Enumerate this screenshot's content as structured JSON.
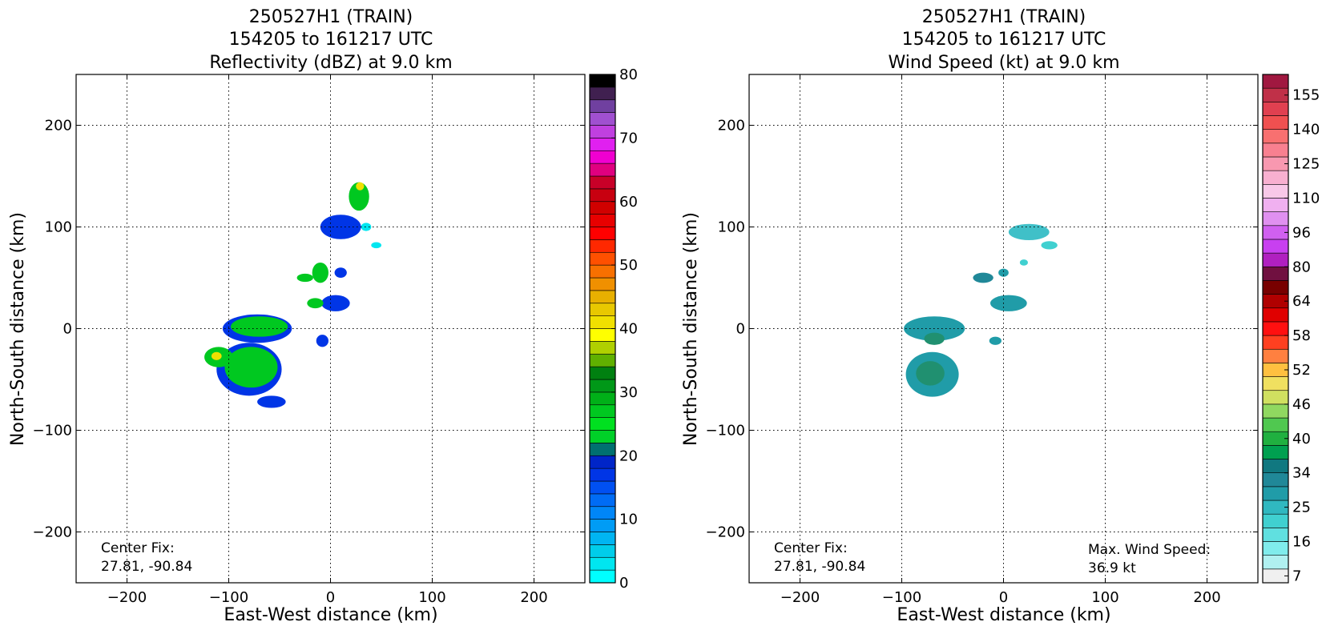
{
  "chart_data": [
    {
      "type": "heatmap",
      "title": [
        "250527H1 (TRAIN)",
        "154205 to 161217 UTC",
        "Reflectivity (dBZ) at 9.0 km"
      ],
      "xlabel": "East-West distance (km)",
      "ylabel": "North-South distance (km)",
      "xlim": [
        -250,
        250
      ],
      "ylim": [
        -250,
        250
      ],
      "xticks": [
        -200,
        -100,
        0,
        100,
        200
      ],
      "yticks": [
        -200,
        -100,
        0,
        100,
        200
      ],
      "grid": true,
      "annotations": [
        "Center Fix:",
        "27.81, -90.84"
      ],
      "colorbar": {
        "label_ticks": [
          "0",
          "10",
          "20",
          "30",
          "40",
          "50",
          "60",
          "70",
          "80"
        ],
        "colors": [
          "#00ffff",
          "#00e6f0",
          "#00cdea",
          "#00b5f2",
          "#009cf5",
          "#0086f7",
          "#006cf5",
          "#0050f2",
          "#0035e6",
          "#0025c8",
          "#007070",
          "#00d028",
          "#00e020",
          "#00c820",
          "#00b018",
          "#009818",
          "#008010",
          "#60b000",
          "#b0d000",
          "#ffff00",
          "#f0e000",
          "#e8c800",
          "#e8b000",
          "#f09000",
          "#f87000",
          "#ff5000",
          "#ff2800",
          "#ff0000",
          "#e80000",
          "#d00000",
          "#c80010",
          "#c80028",
          "#e00080",
          "#f000d0",
          "#e020f0",
          "#c040e0",
          "#a050d0",
          "#7040a0",
          "#402050",
          "#000000"
        ]
      },
      "patches": [
        {
          "x": -80,
          "y": -40,
          "rx": 32,
          "ry": 26,
          "color": "#0035e6"
        },
        {
          "x": -78,
          "y": -38,
          "rx": 26,
          "ry": 20,
          "color": "#00c820"
        },
        {
          "x": -72,
          "y": 0,
          "rx": 34,
          "ry": 14,
          "color": "#0035e6"
        },
        {
          "x": -70,
          "y": 2,
          "rx": 28,
          "ry": 10,
          "color": "#00c820"
        },
        {
          "x": -110,
          "y": -28,
          "rx": 14,
          "ry": 10,
          "color": "#00c820"
        },
        {
          "x": -112,
          "y": -27,
          "rx": 5,
          "ry": 4,
          "color": "#f0e000"
        },
        {
          "x": -58,
          "y": -72,
          "rx": 14,
          "ry": 6,
          "color": "#0035e6"
        },
        {
          "x": 10,
          "y": 100,
          "rx": 20,
          "ry": 12,
          "color": "#0035e6"
        },
        {
          "x": 28,
          "y": 130,
          "rx": 10,
          "ry": 14,
          "color": "#00c820"
        },
        {
          "x": 29,
          "y": 140,
          "rx": 4,
          "ry": 4,
          "color": "#f0e000"
        },
        {
          "x": 35,
          "y": 100,
          "rx": 5,
          "ry": 4,
          "color": "#00e6f0"
        },
        {
          "x": 45,
          "y": 82,
          "rx": 5,
          "ry": 3,
          "color": "#00e6f0"
        },
        {
          "x": -10,
          "y": 55,
          "rx": 8,
          "ry": 10,
          "color": "#00c820"
        },
        {
          "x": -25,
          "y": 50,
          "rx": 8,
          "ry": 4,
          "color": "#00c820"
        },
        {
          "x": 5,
          "y": 25,
          "rx": 14,
          "ry": 8,
          "color": "#0035e6"
        },
        {
          "x": -15,
          "y": 25,
          "rx": 8,
          "ry": 5,
          "color": "#00c820"
        },
        {
          "x": -8,
          "y": -12,
          "rx": 6,
          "ry": 6,
          "color": "#0035e6"
        },
        {
          "x": 10,
          "y": 55,
          "rx": 6,
          "ry": 5,
          "color": "#0035e6"
        }
      ]
    },
    {
      "type": "heatmap",
      "title": [
        "250527H1 (TRAIN)",
        "154205 to 161217 UTC",
        "Wind Speed (kt) at 9.0 km"
      ],
      "xlabel": "East-West distance (km)",
      "ylabel": "North-South distance (km)",
      "xlim": [
        -250,
        250
      ],
      "ylim": [
        -250,
        250
      ],
      "xticks": [
        -200,
        -100,
        0,
        100,
        200
      ],
      "yticks": [
        -200,
        -100,
        0,
        100,
        200
      ],
      "grid": true,
      "annotations": [
        "Center Fix:",
        "27.81, -90.84",
        "Max. Wind Speed:",
        "36.9 kt"
      ],
      "colorbar": {
        "label_ticks": [
          "7",
          "16",
          "25",
          "34",
          "40",
          "46",
          "52",
          "58",
          "64",
          "80",
          "96",
          "110",
          "125",
          "140",
          "155"
        ],
        "colors": [
          "#f0f0f0",
          "#b0f0f0",
          "#80ecec",
          "#60e0e0",
          "#40d0d0",
          "#30b8c0",
          "#209ca8",
          "#208898",
          "#107880",
          "#00a050",
          "#20b040",
          "#50c850",
          "#90d860",
          "#d0e060",
          "#f0e060",
          "#ffc040",
          "#ff8040",
          "#ff4020",
          "#ff1010",
          "#e00000",
          "#b00000",
          "#780000",
          "#701040",
          "#b020c0",
          "#c840f0",
          "#d060f0",
          "#e090f0",
          "#f0b0f0",
          "#f8c8e8",
          "#f8b0d0",
          "#f898b0",
          "#f88090",
          "#f87070",
          "#f05050",
          "#e04050",
          "#c03048",
          "#a01840"
        ]
      },
      "patches": [
        {
          "x": -70,
          "y": -45,
          "rx": 26,
          "ry": 22,
          "color": "#209ca8"
        },
        {
          "x": -72,
          "y": -44,
          "rx": 14,
          "ry": 12,
          "color": "#209070"
        },
        {
          "x": -68,
          "y": 0,
          "rx": 30,
          "ry": 12,
          "color": "#209ca8"
        },
        {
          "x": -68,
          "y": -10,
          "rx": 10,
          "ry": 6,
          "color": "#209070"
        },
        {
          "x": 25,
          "y": 95,
          "rx": 20,
          "ry": 8,
          "color": "#40c0c8"
        },
        {
          "x": 45,
          "y": 82,
          "rx": 8,
          "ry": 4,
          "color": "#40d0d0"
        },
        {
          "x": -20,
          "y": 50,
          "rx": 10,
          "ry": 5,
          "color": "#208898"
        },
        {
          "x": 5,
          "y": 25,
          "rx": 18,
          "ry": 8,
          "color": "#209ca8"
        },
        {
          "x": -8,
          "y": -12,
          "rx": 6,
          "ry": 4,
          "color": "#209ca8"
        },
        {
          "x": 0,
          "y": 55,
          "rx": 5,
          "ry": 4,
          "color": "#209ca8"
        },
        {
          "x": 20,
          "y": 65,
          "rx": 4,
          "ry": 3,
          "color": "#40d0d0"
        }
      ]
    }
  ]
}
